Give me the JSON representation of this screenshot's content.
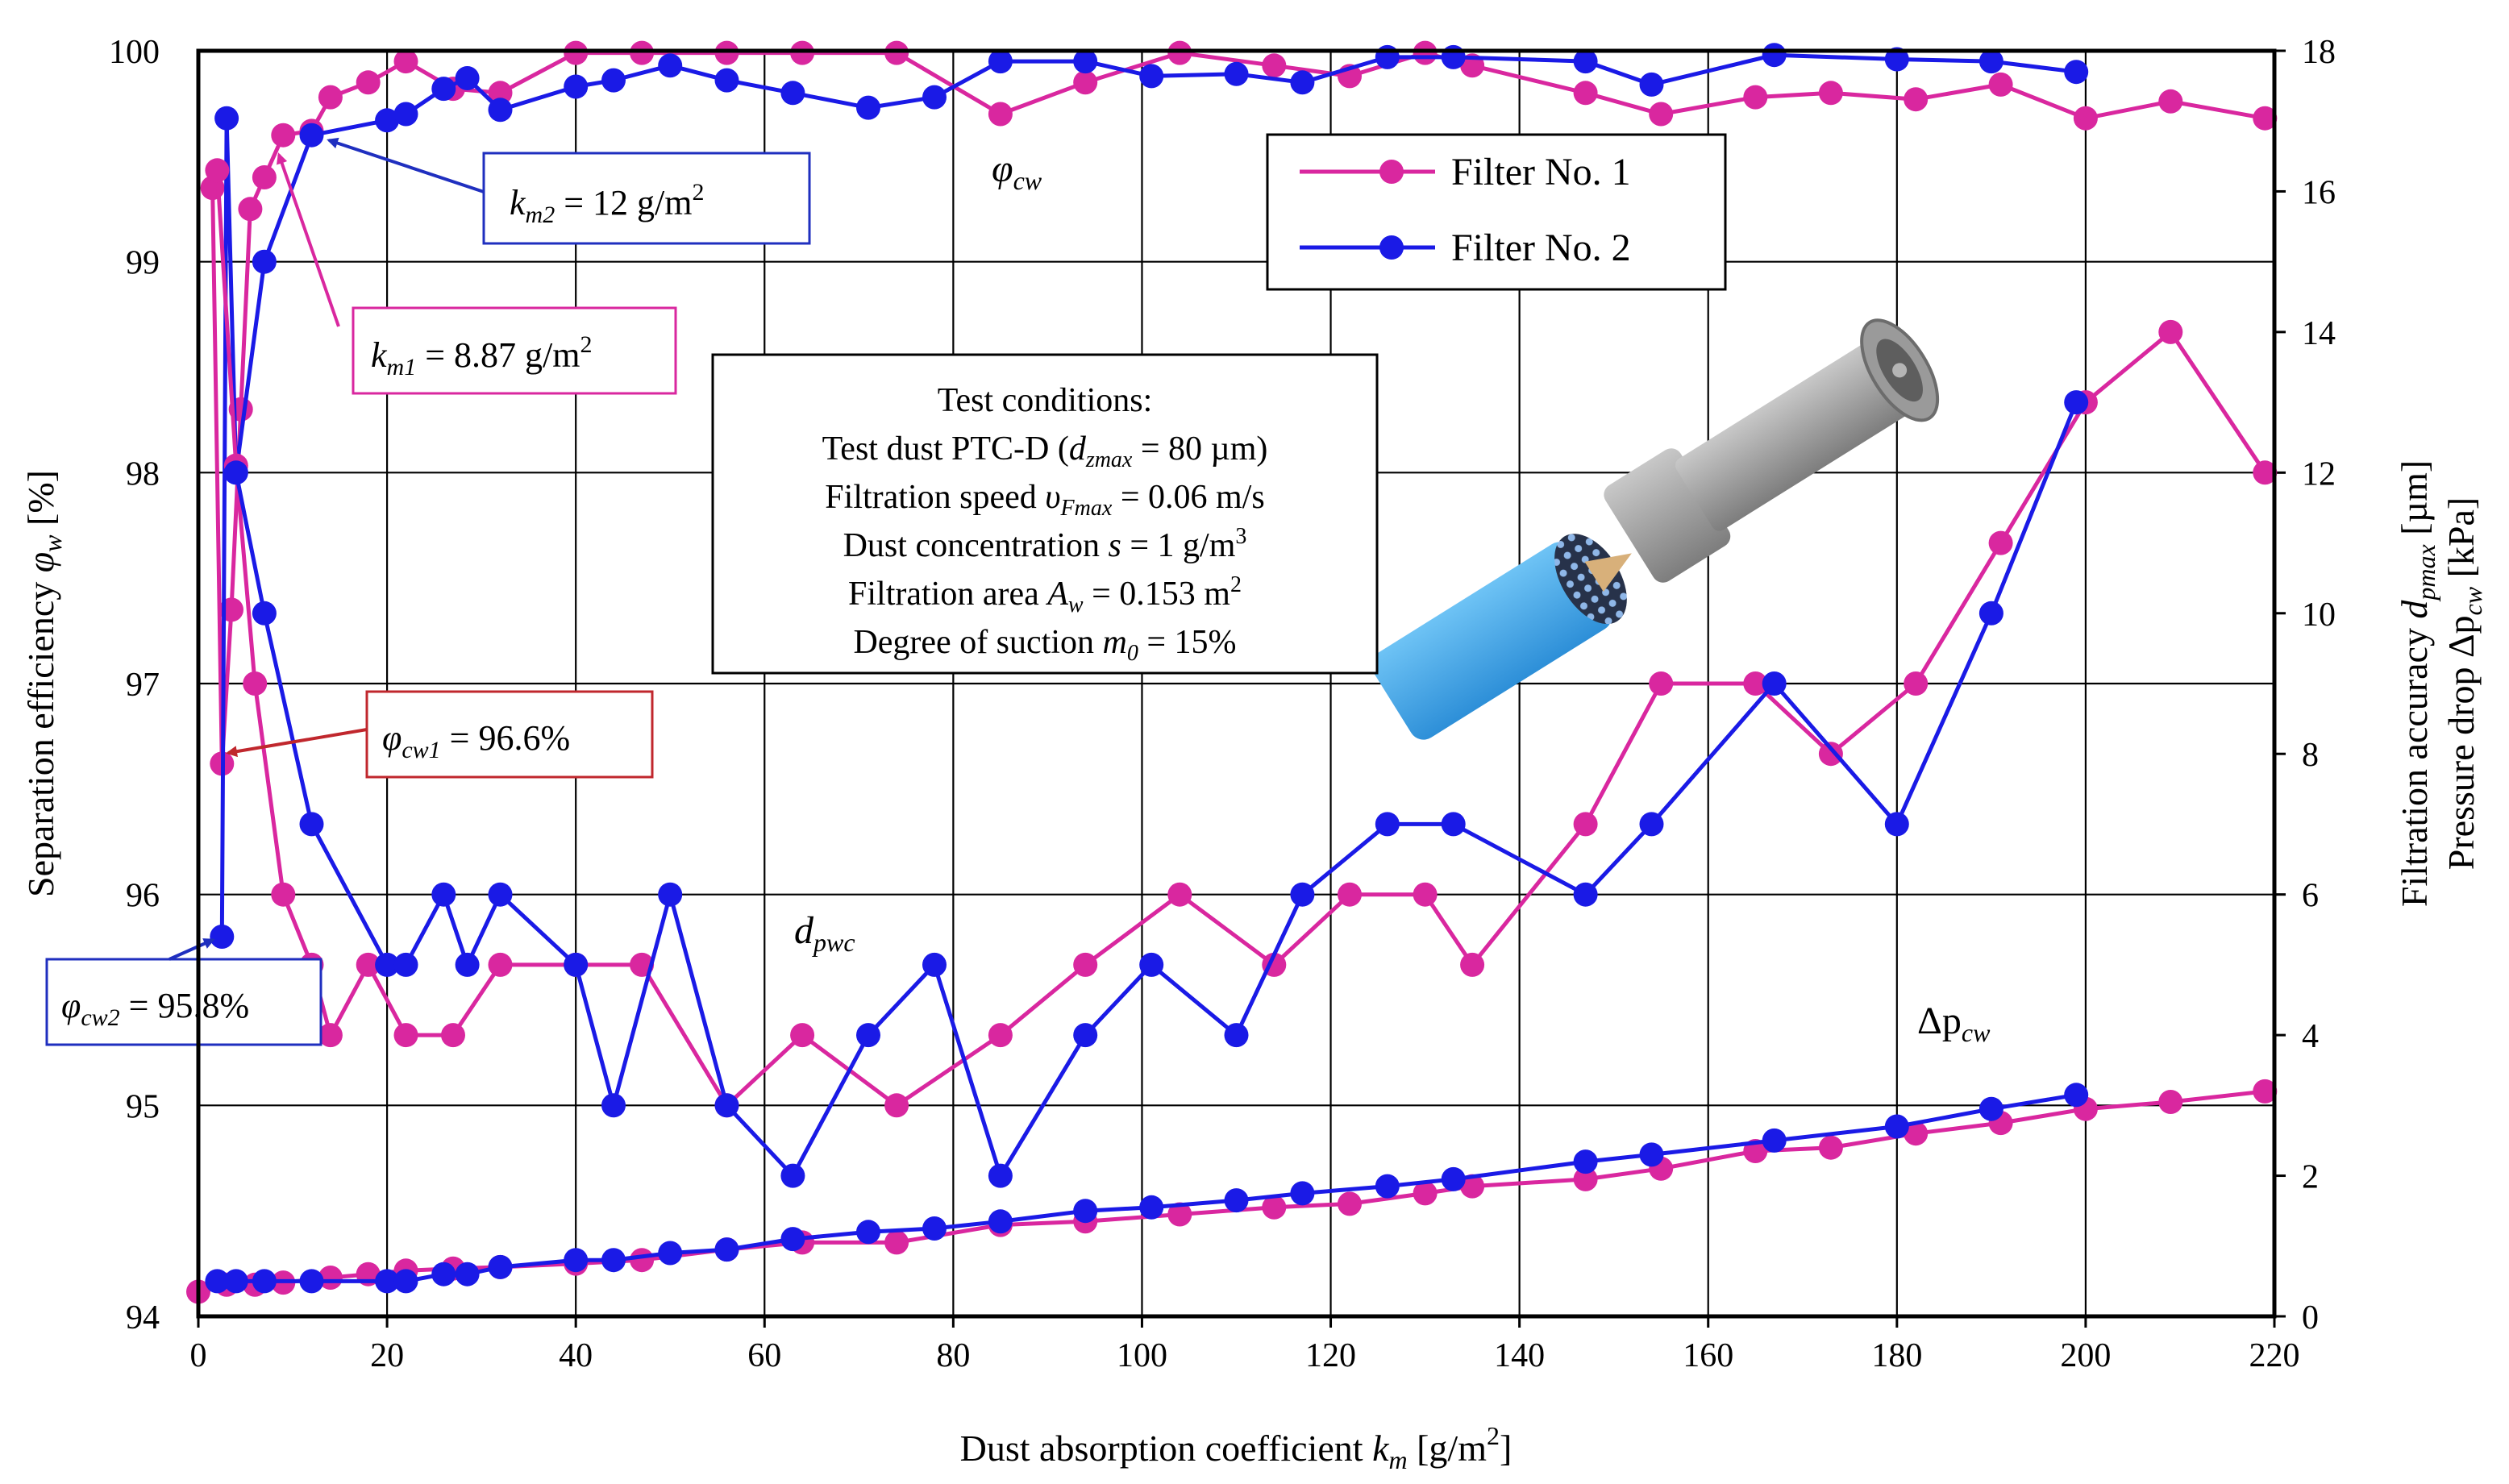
{
  "chart_data": {
    "type": "line",
    "xlabel": {
      "main": "Dust absorption coefficient ",
      "var": "k",
      "sub": "m",
      "unit": " [g/m",
      "sup": "2",
      "close": "]"
    },
    "ylabel_left": {
      "main": "Separation efficiency ",
      "var": "φ",
      "sub": "w",
      "unit": " [%]"
    },
    "ylabel_right_1": {
      "main": "Filtration accuracy  ",
      "var": "d",
      "sub": "pmax",
      "unit": " [µm]"
    },
    "ylabel_right_2": {
      "main": "Pressure drop ",
      "var": "Δp",
      "sub": "cw",
      "unit": " [kPa]"
    },
    "xlim": [
      0,
      220
    ],
    "ylim_left": [
      94,
      100
    ],
    "ylim_right": [
      0,
      18
    ],
    "x_ticks": [
      "0",
      "20",
      "40",
      "60",
      "80",
      "100",
      "120",
      "140",
      "160",
      "180",
      "200",
      "220"
    ],
    "y_left_ticks": [
      "94",
      "95",
      "96",
      "97",
      "98",
      "99",
      "100"
    ],
    "y_right_ticks": [
      "0",
      "2",
      "4",
      "6",
      "8",
      "10",
      "12",
      "14",
      "16",
      "18"
    ],
    "colors": {
      "filter1": "#D9279F",
      "filter2": "#1A1AE6",
      "box_blue": "#1F2FBF",
      "box_pink": "#D9279F",
      "box_red": "#C0272D"
    },
    "legend": {
      "position": "top-right",
      "entries": [
        {
          "label": "Filter No. 1",
          "color": "#D9279F"
        },
        {
          "label": "Filter No. 2",
          "color": "#1A1AE6"
        }
      ]
    },
    "curve_labels": {
      "efficiency": {
        "var": "φ",
        "sub": "cw"
      },
      "accuracy": {
        "var": "d",
        "sub": "pwc"
      },
      "pressure": {
        "var": "Δp",
        "sub": "cw"
      }
    },
    "test_conditions": {
      "title": "Test conditions:",
      "line1_a": "Test dust PTC-D (",
      "line1_var": "d",
      "line1_sub": "zmax",
      "line1_b": " = 80 µm)",
      "line2_a": "Filtration speed ",
      "line2_var": "υ",
      "line2_sub": "Fmax",
      "line2_b": " = 0.06 m/s",
      "line3_a": "Dust concentration ",
      "line3_var": "s",
      "line3_b": " = 1 g/m",
      "line3_sup": "3",
      "line4_a": "Filtration area ",
      "line4_var": "A",
      "line4_sub": "w",
      "line4_b": " = 0.153 m",
      "line4_sup": "2",
      "line5_a": "Degree of suction ",
      "line5_var": "m",
      "line5_sub": "0",
      "line5_b": " = 15%"
    },
    "annotations": {
      "km2": {
        "var": "k",
        "sub": "m2",
        "text": " = 12 g/m",
        "sup": "2"
      },
      "km1": {
        "var": "k",
        "sub": "m1",
        "text": " = 8.87 g/m",
        "sup": "2"
      },
      "phi_cw1": {
        "var": "φ",
        "sub": "cw1",
        "text": " = 96.6%"
      },
      "phi_cw2": {
        "var": "φ",
        "sub": "cw2",
        "text": " = 95.8%"
      }
    },
    "series": [
      {
        "name": "Filter No. 1",
        "quantity": "efficiency",
        "axis": "left",
        "color": "#D9279F",
        "x": [
          1.5,
          2.5,
          3.5,
          4.5,
          5.5,
          7,
          9,
          12,
          14,
          18,
          22,
          27,
          32,
          40,
          47,
          56,
          64,
          74,
          85,
          94,
          104,
          114,
          122,
          130,
          135,
          147,
          155,
          165,
          173,
          182,
          191,
          200,
          209,
          219
        ],
        "y": [
          99.35,
          96.62,
          97.35,
          98.3,
          99.25,
          99.4,
          99.6,
          99.62,
          99.78,
          99.85,
          99.95,
          99.82,
          99.8,
          99.99,
          99.99,
          99.99,
          99.99,
          99.99,
          99.7,
          99.85,
          99.99,
          99.93,
          99.88,
          99.99,
          99.93,
          99.8,
          99.7,
          99.78,
          99.8,
          99.77,
          99.84,
          99.68,
          99.76,
          99.68
        ]
      },
      {
        "name": "Filter No. 2",
        "quantity": "efficiency",
        "axis": "left",
        "color": "#1A1AE6",
        "x": [
          2.5,
          3,
          4,
          7,
          12,
          20,
          22,
          26,
          28.5,
          32,
          40,
          44,
          50,
          56,
          63,
          71,
          78,
          85,
          94,
          101,
          110,
          117,
          126,
          133,
          147,
          154,
          167,
          180,
          190,
          199
        ],
        "y": [
          95.8,
          99.68,
          98.0,
          99.0,
          99.6,
          99.67,
          99.7,
          99.82,
          99.87,
          99.72,
          99.83,
          99.86,
          99.93,
          99.86,
          99.8,
          99.73,
          99.78,
          99.95,
          99.95,
          99.88,
          99.89,
          99.85,
          99.97,
          99.97,
          99.95,
          99.84,
          99.98,
          99.96,
          99.95,
          99.9
        ]
      },
      {
        "name": "Filter No. 1",
        "quantity": "accuracy",
        "axis": "right",
        "color": "#D9279F",
        "x": [
          2,
          4,
          6,
          9,
          12,
          14,
          18,
          22,
          27,
          32,
          40,
          47,
          56,
          64,
          74,
          85,
          94,
          104,
          114,
          122,
          130,
          135,
          147,
          155,
          165,
          173,
          182,
          191,
          200,
          209,
          219
        ],
        "y": [
          16.3,
          12.1,
          9.0,
          6.0,
          5.0,
          4.0,
          5.0,
          4.0,
          4.0,
          5.0,
          5.0,
          5.0,
          3.0,
          4.0,
          3.0,
          4.0,
          5.0,
          6.0,
          5.0,
          6.0,
          6.0,
          5.0,
          7.0,
          9.0,
          9.0,
          8.0,
          9.0,
          11.0,
          13.0,
          14.0,
          12.0
        ]
      },
      {
        "name": "Filter No. 2",
        "quantity": "accuracy",
        "axis": "right",
        "color": "#1A1AE6",
        "x": [
          4,
          7,
          12,
          20,
          22,
          26,
          28.5,
          32,
          40,
          44,
          50,
          56,
          63,
          71,
          78,
          85,
          94,
          101,
          110,
          117,
          126,
          133,
          147,
          154,
          167,
          180,
          190,
          199
        ],
        "y": [
          12.0,
          10.0,
          7.0,
          5.0,
          5.0,
          6.0,
          5.0,
          6.0,
          5.0,
          3.0,
          6.0,
          3.0,
          2.0,
          4.0,
          5.0,
          2.0,
          4.0,
          5.0,
          4.0,
          6.0,
          7.0,
          7.0,
          6.0,
          7.0,
          9.0,
          7.0,
          10.0,
          13.0
        ]
      },
      {
        "name": "Filter No. 1",
        "quantity": "pressure",
        "axis": "right",
        "color": "#D9279F",
        "x": [
          0,
          3,
          6,
          9,
          14,
          18,
          22,
          27,
          32,
          40,
          47,
          56,
          64,
          74,
          85,
          94,
          104,
          114,
          122,
          130,
          135,
          147,
          155,
          165,
          173,
          182,
          191,
          200,
          209,
          219
        ],
        "y": [
          0.35,
          0.45,
          0.45,
          0.48,
          0.55,
          0.6,
          0.65,
          0.68,
          0.7,
          0.75,
          0.8,
          0.95,
          1.05,
          1.05,
          1.3,
          1.35,
          1.45,
          1.55,
          1.6,
          1.75,
          1.85,
          1.95,
          2.1,
          2.35,
          2.4,
          2.6,
          2.75,
          2.95,
          3.05,
          3.2
        ]
      },
      {
        "name": "Filter No. 2",
        "quantity": "pressure",
        "axis": "right",
        "color": "#1A1AE6",
        "x": [
          2,
          4,
          7,
          12,
          20,
          22,
          26,
          28.5,
          32,
          40,
          44,
          50,
          56,
          63,
          71,
          78,
          85,
          94,
          101,
          110,
          117,
          126,
          133,
          147,
          154,
          167,
          180,
          190,
          199
        ],
        "y": [
          0.5,
          0.5,
          0.5,
          0.5,
          0.5,
          0.5,
          0.6,
          0.6,
          0.7,
          0.8,
          0.8,
          0.9,
          0.95,
          1.1,
          1.2,
          1.25,
          1.35,
          1.5,
          1.55,
          1.65,
          1.75,
          1.85,
          1.95,
          2.2,
          2.3,
          2.5,
          2.7,
          2.95,
          3.15
        ]
      }
    ]
  }
}
